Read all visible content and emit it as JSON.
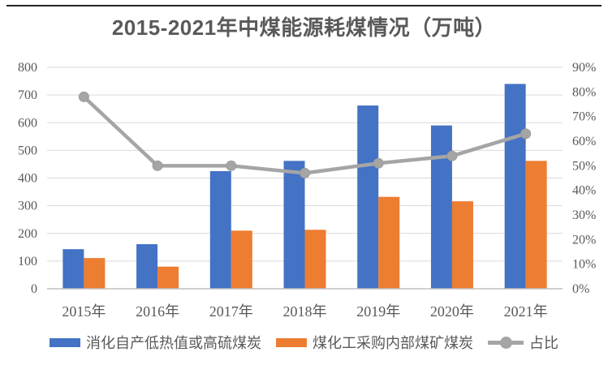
{
  "title": "2015-2021年中煤能源耗煤情况（万吨）",
  "colors": {
    "background": "#ffffff",
    "top_rule": "#262626",
    "text": "#595959",
    "gridline": "#d9d9d9",
    "axis_line": "#bfbfbf",
    "blue": "#4472c4",
    "orange": "#ed7d31",
    "gray_line": "#a5a5a5"
  },
  "chart_data": {
    "type": "bar",
    "subtype": "grouped-bars-with-line",
    "title": "2015-2021年中煤能源耗煤情况（万吨）",
    "categories": [
      "2015年",
      "2016年",
      "2017年",
      "2018年",
      "2019年",
      "2020年",
      "2021年"
    ],
    "series": [
      {
        "name": "消化自产低热值或高硫煤炭",
        "type": "bar",
        "axis": "left",
        "color": "#4472c4",
        "values": [
          143,
          161,
          425,
          462,
          662,
          590,
          740
        ]
      },
      {
        "name": "煤化工采购内部煤矿煤炭",
        "type": "bar",
        "axis": "left",
        "color": "#ed7d31",
        "values": [
          111,
          80,
          210,
          213,
          332,
          316,
          462
        ]
      },
      {
        "name": "占比",
        "type": "line",
        "axis": "right",
        "color": "#a5a5a5",
        "unit": "%",
        "values": [
          78,
          50,
          50,
          47,
          51,
          54,
          63
        ]
      }
    ],
    "left_axis": {
      "min": 0,
      "max": 800,
      "step": 100,
      "tick_labels": [
        "0",
        "100",
        "200",
        "300",
        "400",
        "500",
        "600",
        "700",
        "800"
      ]
    },
    "right_axis": {
      "min": 0,
      "max": 90,
      "step": 10,
      "unit": "%",
      "tick_labels": [
        "0%",
        "10%",
        "20%",
        "30%",
        "40%",
        "50%",
        "60%",
        "70%",
        "80%",
        "90%"
      ]
    },
    "grid": "horizontal",
    "legend_position": "bottom"
  }
}
